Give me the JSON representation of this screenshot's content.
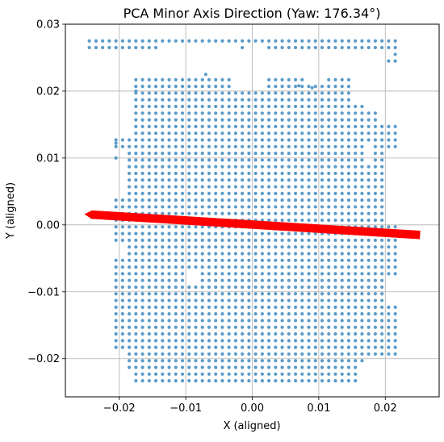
{
  "chart_data": {
    "type": "scatter",
    "title": "PCA Minor Axis Direction (Yaw: 176.34°)",
    "xlabel": "X (aligned)",
    "ylabel": "Y (aligned)",
    "xlim": [
      -0.0281,
      0.0281
    ],
    "ylim": [
      -0.0257,
      0.03
    ],
    "x_ticks": [
      -0.02,
      -0.01,
      0.0,
      0.01,
      0.02
    ],
    "x_tick_labels": [
      "−0.02",
      "−0.01",
      "0.00",
      "0.01",
      "0.02"
    ],
    "y_ticks": [
      -0.02,
      -0.01,
      0.0,
      0.01,
      0.02,
      0.03
    ],
    "y_tick_labels": [
      "−0.02",
      "−0.01",
      "0.00",
      "0.01",
      "0.02",
      "0.03"
    ],
    "grid": true,
    "legend": "none",
    "point_color": "#5b9bc8",
    "arrow_color": "#ff0000",
    "series": [
      {
        "type": "scatter",
        "grid_step": [
          0.001,
          0.001
        ],
        "main_block": {
          "x_range": [
            -0.0205,
            0.0215
          ],
          "y_range": [
            -0.0233,
            0.0218
          ],
          "holes": [
            {
              "x_range": [
                -0.0215,
                -0.0185
              ],
              "y_range": [
                0.0128,
                0.0218
              ]
            },
            {
              "x_range": [
                -0.0215,
                -0.0195
              ],
              "y_range": [
                0.0042,
                0.0108
              ]
            },
            {
              "x_range": [
                -0.0215,
                -0.0195
              ],
              "y_range": [
                -0.005,
                -0.003
              ]
            },
            {
              "x_range": [
                -0.0215,
                -0.0195
              ],
              "y_range": [
                -0.0233,
                -0.019
              ]
            },
            {
              "x_range": [
                -0.0215,
                -0.0175
              ],
              "y_range": [
                -0.0233,
                -0.0218
              ]
            },
            {
              "x_range": [
                0.0175,
                0.0225
              ],
              "y_range": [
                -0.0233,
                -0.0195
              ]
            },
            {
              "x_range": [
                0.0165,
                0.0225
              ],
              "y_range": [
                -0.0233,
                -0.0213
              ]
            },
            {
              "x_range": [
                0.0195,
                0.0225
              ],
              "y_range": [
                0.0148,
                0.0218
              ]
            },
            {
              "x_range": [
                0.0175,
                0.0225
              ],
              "y_range": [
                0.0168,
                0.0218
              ]
            },
            {
              "x_range": [
                0.0155,
                0.0225
              ],
              "y_range": [
                0.0185,
                0.0218
              ]
            },
            {
              "x_range": [
                0.0205,
                0.0225
              ],
              "y_range": [
                0.0005,
                0.0108
              ]
            },
            {
              "x_range": [
                0.0205,
                0.0225
              ],
              "y_range": [
                -0.012,
                -0.0075
              ]
            },
            {
              "x_range": [
                -0.0095,
                -0.0075
              ],
              "y_range": [
                -0.009,
                -0.0068
              ]
            },
            {
              "x_range": [
                0.0175,
                0.0185
              ],
              "y_range": [
                0.0095,
                0.0125
              ]
            },
            {
              "x_range": [
                -0.0025,
                0.0025
              ],
              "y_range": [
                0.0205,
                0.0218
              ]
            },
            {
              "x_range": [
                0.0085,
                0.0115
              ],
              "y_range": [
                0.0208,
                0.0218
              ]
            }
          ]
        },
        "top_strip": {
          "rows": [
            0.0275,
            0.0265
          ],
          "x_range": [
            -0.0245,
            0.0215
          ],
          "gaps": [
            {
              "x_range": [
                -0.014,
                -0.002
              ],
              "y": 0.0265
            },
            {
              "x_range": [
                -0.001,
                0.002
              ],
              "y": 0.0265
            }
          ]
        },
        "extra_points": [
          [
            0.0215,
            0.0255
          ],
          [
            0.0215,
            0.0245
          ],
          [
            0.0205,
            0.0245
          ],
          [
            -0.0205,
            0.0122
          ],
          [
            -0.0205,
            0.01
          ],
          [
            -0.0175,
            0.02
          ],
          [
            -0.007,
            0.0225
          ],
          [
            0.007,
            0.0208
          ],
          [
            0.009,
            0.0205
          ]
        ]
      }
    ],
    "arrow": {
      "from": [
        0.0252,
        -0.0015
      ],
      "to": [
        -0.0252,
        0.0016
      ]
    }
  }
}
